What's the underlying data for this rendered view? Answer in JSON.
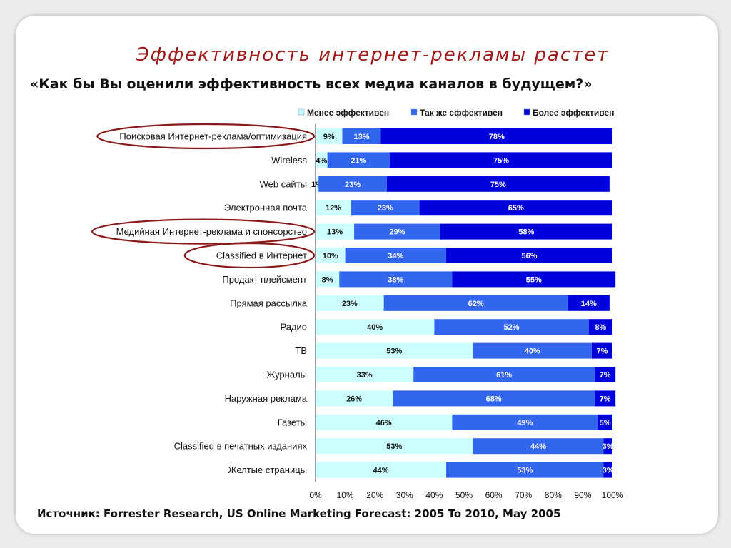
{
  "title": "Эффективность интернет-рекламы растет",
  "question": "«Как бы Вы оценили эффективность всех медиа каналов в будущем?»",
  "source": "Источник: Forrester Research, US Online Marketing Forecast: 2005 To 2010, May 2005",
  "chart_data": {
    "type": "bar",
    "orientation": "horizontal",
    "stacked": "percent",
    "title": "",
    "xlabel": "",
    "ylabel": "",
    "xlim": [
      0,
      100
    ],
    "x_ticks": [
      "0%",
      "10%",
      "20%",
      "30%",
      "40%",
      "50%",
      "60%",
      "70%",
      "80%",
      "90%",
      "100%"
    ],
    "legend_position": "top",
    "categories": [
      "Поисковая Интернет-реклама/оптимизация",
      "Wireless",
      "Web сайты",
      "Электронная почта",
      "Медийная Интернет-реклама и спонсорство",
      "Classified в Интернет",
      "Продакт плейсмент",
      "Прямая рассылка",
      "Радио",
      "ТВ",
      "Журналы",
      "Наружная реклама",
      "Газеты",
      "Classified в печатных изданиях",
      "Желтые страницы"
    ],
    "highlighted_categories": [
      "Поисковая Интернет-реклама/оптимизация",
      "Медийная Интернет-реклама и спонсорство",
      "Classified в Интернет"
    ],
    "series": [
      {
        "name": "Менее эффективен",
        "color": "#ccffff",
        "values": [
          9,
          4,
          1,
          12,
          13,
          10,
          8,
          23,
          40,
          53,
          33,
          26,
          46,
          53,
          44
        ]
      },
      {
        "name": "Так же еффективен",
        "color": "#3366ee",
        "values": [
          13,
          21,
          23,
          23,
          29,
          34,
          38,
          62,
          52,
          40,
          61,
          68,
          49,
          44,
          53
        ]
      },
      {
        "name": "Более эффективен",
        "color": "#0000dd",
        "values": [
          78,
          75,
          75,
          65,
          58,
          56,
          55,
          14,
          8,
          7,
          7,
          7,
          5,
          3,
          3
        ]
      }
    ]
  }
}
